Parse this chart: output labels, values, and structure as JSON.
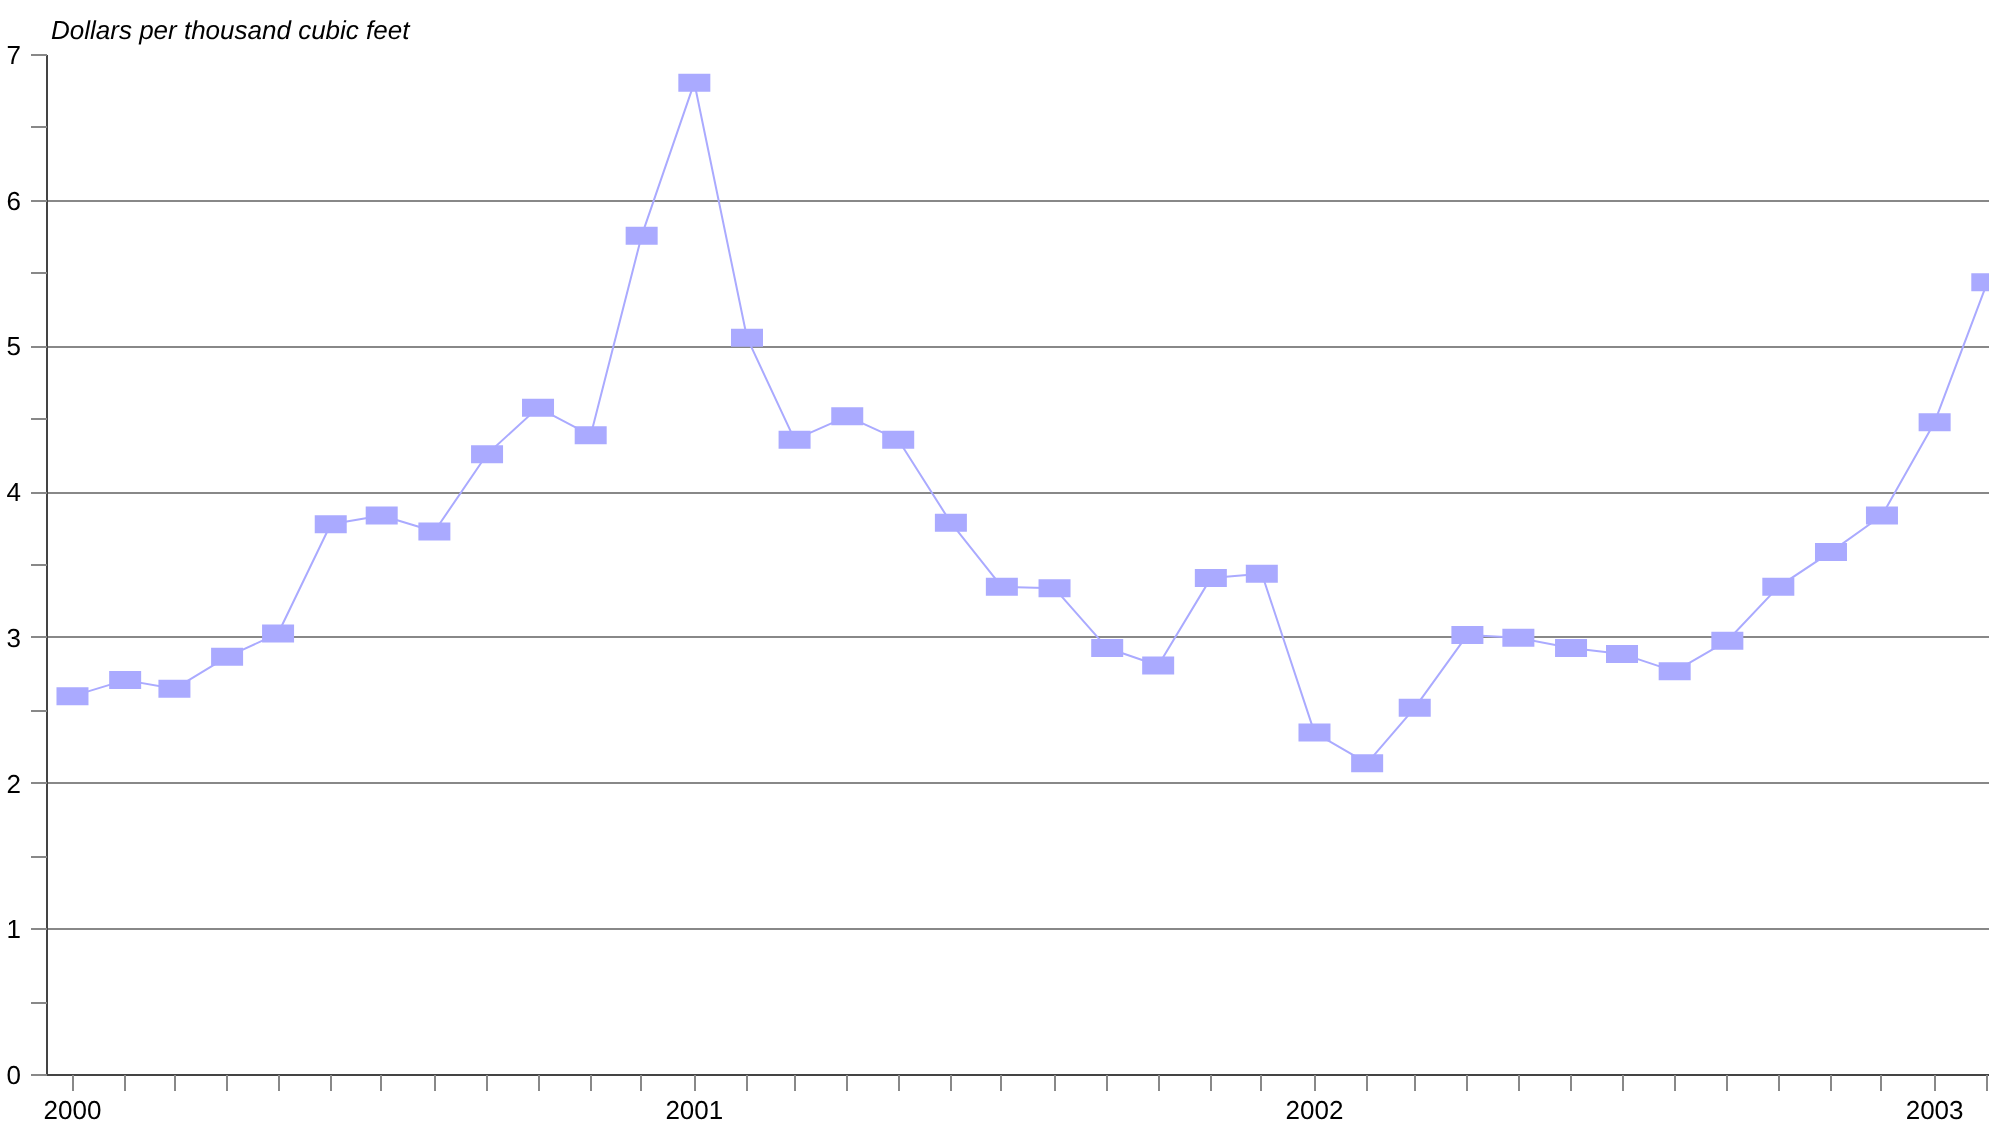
{
  "chart_data": {
    "type": "line",
    "ylabel": "Dollars per thousand cubic feet",
    "x": [
      "2000-01",
      "2000-02",
      "2000-03",
      "2000-04",
      "2000-05",
      "2000-06",
      "2000-07",
      "2000-08",
      "2000-09",
      "2000-10",
      "2000-11",
      "2000-12",
      "2001-01",
      "2001-02",
      "2001-03",
      "2001-04",
      "2001-05",
      "2001-06",
      "2001-07",
      "2001-08",
      "2001-09",
      "2001-10",
      "2001-11",
      "2001-12",
      "2002-01",
      "2002-02",
      "2002-03",
      "2002-04",
      "2002-05",
      "2002-06",
      "2002-07",
      "2002-08",
      "2002-09",
      "2002-10",
      "2002-11",
      "2002-12",
      "2003-01",
      "2003-02"
    ],
    "series": [
      {
        "color": "#aaaaff",
        "values": [
          2.6,
          2.71,
          2.65,
          2.87,
          3.03,
          3.78,
          3.84,
          3.73,
          4.26,
          4.58,
          4.39,
          5.76,
          6.81,
          5.06,
          4.36,
          4.52,
          4.36,
          3.79,
          3.35,
          3.34,
          2.93,
          2.81,
          3.41,
          3.44,
          2.35,
          2.14,
          2.52,
          3.02,
          3.0,
          2.93,
          2.89,
          2.77,
          2.98,
          3.35,
          3.59,
          3.84,
          4.48,
          5.44
        ]
      }
    ],
    "xlim": [
      "1999-12-17",
      "2003-02-02"
    ],
    "xticks": [
      {
        "value": "2000-01",
        "label": "2000"
      },
      {
        "value": "2000-02",
        "label": null
      },
      {
        "value": "2000-03",
        "label": null
      },
      {
        "value": "2000-04",
        "label": null
      },
      {
        "value": "2000-05",
        "label": null
      },
      {
        "value": "2000-06",
        "label": null
      },
      {
        "value": "2000-07",
        "label": null
      },
      {
        "value": "2000-08",
        "label": null
      },
      {
        "value": "2000-09",
        "label": null
      },
      {
        "value": "2000-10",
        "label": null
      },
      {
        "value": "2000-11",
        "label": null
      },
      {
        "value": "2000-12",
        "label": null
      },
      {
        "value": "2001-01",
        "label": "2001"
      },
      {
        "value": "2001-02",
        "label": null
      },
      {
        "value": "2001-03",
        "label": null
      },
      {
        "value": "2001-04",
        "label": null
      },
      {
        "value": "2001-05",
        "label": null
      },
      {
        "value": "2001-06",
        "label": null
      },
      {
        "value": "2001-07",
        "label": null
      },
      {
        "value": "2001-08",
        "label": null
      },
      {
        "value": "2001-09",
        "label": null
      },
      {
        "value": "2001-10",
        "label": null
      },
      {
        "value": "2001-11",
        "label": null
      },
      {
        "value": "2001-12",
        "label": null
      },
      {
        "value": "2002-01",
        "label": "2002"
      },
      {
        "value": "2002-02",
        "label": null
      },
      {
        "value": "2002-03",
        "label": null
      },
      {
        "value": "2002-04",
        "label": null
      },
      {
        "value": "2002-05",
        "label": null
      },
      {
        "value": "2002-06",
        "label": null
      },
      {
        "value": "2002-07",
        "label": null
      },
      {
        "value": "2002-08",
        "label": null
      },
      {
        "value": "2002-09",
        "label": null
      },
      {
        "value": "2002-10",
        "label": null
      },
      {
        "value": "2002-11",
        "label": null
      },
      {
        "value": "2002-12",
        "label": null
      },
      {
        "value": "2003-01",
        "label": "2003"
      },
      {
        "value": "2003-02",
        "label": null
      }
    ],
    "ylim": [
      0,
      7
    ],
    "yticks": [
      0,
      {
        "value": 0.5,
        "label": null
      },
      1,
      {
        "value": 1.5,
        "label": null
      },
      2,
      {
        "value": 2.5,
        "label": null
      },
      3,
      {
        "value": 3.5,
        "label": null
      },
      4,
      {
        "value": 4.5,
        "label": null
      },
      5,
      {
        "value": 5.5,
        "label": null
      },
      6,
      {
        "value": 6.5,
        "label": null
      },
      7
    ],
    "grid": "y",
    "marker": "square",
    "line_style": "solid"
  }
}
